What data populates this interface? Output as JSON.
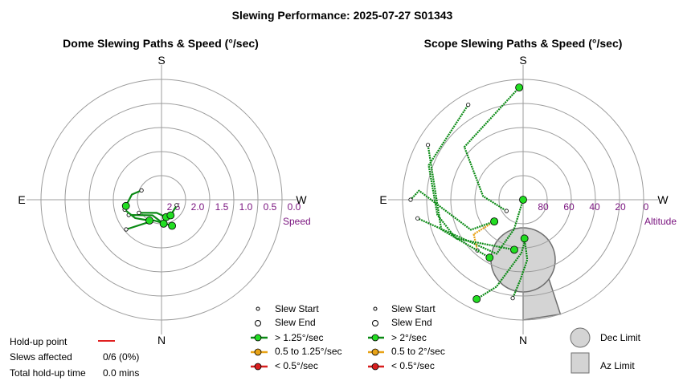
{
  "title": "Slewing Performance: 2025-07-27 S01343",
  "chart_data": [
    {
      "type": "scatter",
      "title": "Dome Slewing Paths & Speed (°/sec)",
      "axis_label": "Speed",
      "compass": {
        "top": "S",
        "bottom": "N",
        "left": "E",
        "right": "W"
      },
      "radial_ticks": [
        "2.5",
        "2.0",
        "1.5",
        "1.0",
        "0.5",
        "0.0"
      ],
      "rlim": [
        3.0,
        0.0
      ],
      "grid": true,
      "legend": {
        "slew_start": "Slew Start",
        "slew_end": "Slew End",
        "fast": "> 1.25°/sec",
        "medium": "0.5 to 1.25°/sec",
        "slow": "< 0.5°/sec"
      },
      "paths": [
        {
          "speed_class": "fast",
          "points": [
            [
              202,
              2.3
            ],
            [
              160,
              2.45
            ],
            [
              130,
              1.85
            ]
          ]
        },
        {
          "speed_class": "fast",
          "points": [
            [
              185,
              2.4
            ],
            [
              150,
              2.55
            ],
            [
              115,
              2.1
            ]
          ]
        },
        {
          "speed_class": "fast",
          "points": [
            [
              195,
              2.55
            ],
            [
              160,
              2.65
            ],
            [
              120,
              2.35
            ]
          ]
        },
        {
          "speed_class": "fast",
          "points": [
            [
              210,
              2.55
            ],
            [
              245,
              2.6
            ],
            [
              250,
              2.6
            ]
          ]
        },
        {
          "speed_class": "fast",
          "points": [
            [
              150,
              2.4
            ],
            [
              125,
              2.2
            ],
            [
              105,
              2.05
            ]
          ]
        },
        {
          "speed_class": "fast",
          "points": [
            [
              100,
              2.1
            ],
            [
              80,
              2.25
            ],
            [
              65,
              2.45
            ]
          ]
        }
      ]
    },
    {
      "type": "scatter",
      "title": "Scope Slewing Paths & Speed (°/sec)",
      "axis_label": "Altitude",
      "compass": {
        "top": "S",
        "bottom": "N",
        "left": "E",
        "right": "W"
      },
      "radial_ticks": [
        "80",
        "60",
        "40",
        "20",
        "0"
      ],
      "rlim": [
        90,
        0
      ],
      "grid": true,
      "legend": {
        "slew_start": "Slew Start",
        "slew_end": "Slew End",
        "fast": "> 2°/sec",
        "medium": "0.5 to 2°/sec",
        "slow": "< 0.5°/sec",
        "dec_limit": "Dec Limit",
        "az_limit": "Az Limit"
      },
      "dec_limit": {
        "az": 0,
        "alt": 45,
        "radius_deg": 24
      },
      "az_limit": {
        "az_range": [
          0,
          18
        ],
        "alt_range": [
          0,
          62
        ]
      },
      "paths": [
        {
          "speed_class": "fast",
          "points": [
            [
              155,
              8
            ],
            [
              163,
              22
            ],
            [
              178,
              50
            ],
            [
              184,
              61
            ]
          ]
        },
        {
          "speed_class": "fast",
          "points": [
            [
              182,
              61
            ],
            [
              184,
              45
            ],
            [
              178,
              30
            ],
            [
              174,
              16
            ]
          ]
        },
        {
          "speed_class": "fast",
          "points": [
            [
              2,
              6
            ],
            [
              48,
              31
            ],
            [
              85,
              60
            ],
            [
              124,
              75
            ]
          ]
        },
        {
          "speed_class": "fast",
          "points": [
            [
              177,
              90
            ],
            [
              163,
              67
            ],
            [
              154,
              45
            ],
            [
              100,
              10
            ]
          ]
        },
        {
          "speed_class": "medium",
          "points": [
            [
              127,
              63
            ],
            [
              125,
              45
            ],
            [
              138,
              39
            ]
          ]
        },
        {
          "speed_class": "fast",
          "points": [
            [
              170,
              52
            ],
            [
              120,
              32
            ],
            [
              100,
              25
            ],
            [
              70,
              15
            ],
            [
              30,
              8
            ]
          ]
        },
        {
          "speed_class": "fast",
          "points": [
            [
              127,
              63
            ],
            [
              120,
              45
            ],
            [
              85,
              12
            ],
            [
              90,
              6
            ]
          ]
        },
        {
          "speed_class": "fast",
          "points": [
            [
              150,
              40
            ],
            [
              110,
              25
            ],
            [
              60,
              8
            ]
          ]
        }
      ]
    }
  ],
  "holdup": {
    "point_label": "Hold-up point",
    "slews_label": "Slews affected",
    "slews_value": "0/6 (0%)",
    "time_label": "Total hold-up time",
    "time_value": "0.0 mins"
  },
  "colors": {
    "fast": "#0a8a14",
    "medium": "#e8a317",
    "slow": "#d81e1e",
    "grid": "#9c9c9c",
    "axis_text": "#7b1680",
    "limit_fill": "#d4d4d4",
    "limit_stroke": "#6e6e6e",
    "start_fill": "#22dd22",
    "holdup": "#e02020"
  }
}
